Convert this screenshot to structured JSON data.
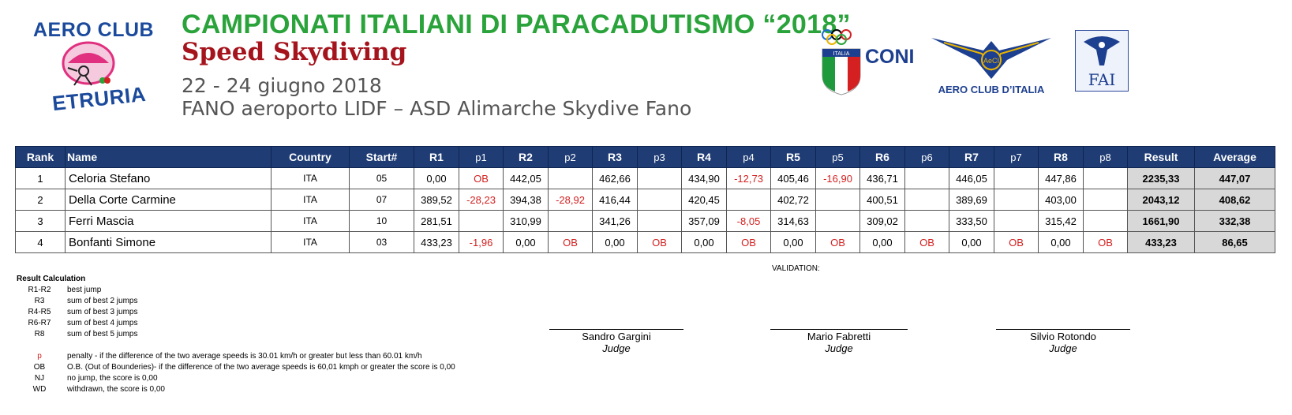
{
  "header": {
    "left_logo_top": "AERO CLUB",
    "left_logo_bottom": "ETRURIA",
    "title": "CAMPIONATI ITALIANI DI PARACADUTISMO “2018”",
    "subtitle": "Speed Skydiving",
    "dates": "22 - 24 giugno 2018",
    "venue": "FANO aeroporto LIDF – ASD Alimarche Skydive Fano",
    "coni_badge": "ITALIA",
    "coni_label": "CONI",
    "aeci_label": "AERO CLUB D’ITALIA",
    "aeci_badge": "AeCI",
    "fai_label": "FAI"
  },
  "table": {
    "columns": [
      "Rank",
      "Name",
      "Country",
      "Start#",
      "R1",
      "p1",
      "R2",
      "p2",
      "R3",
      "p3",
      "R4",
      "p4",
      "R5",
      "p5",
      "R6",
      "p6",
      "R7",
      "p7",
      "R8",
      "p8",
      "Result",
      "Average"
    ],
    "rows": [
      {
        "rank": "1",
        "name": "Celoria Stefano",
        "country": "ITA",
        "start": "05",
        "r1": "0,00",
        "p1": "OB",
        "r2": "442,05",
        "p2": "",
        "r3": "462,66",
        "p3": "",
        "r4": "434,90",
        "p4": "-12,73",
        "r5": "405,46",
        "p5": "-16,90",
        "r6": "436,71",
        "p6": "",
        "r7": "446,05",
        "p7": "",
        "r8": "447,86",
        "p8": "",
        "result": "2235,33",
        "average": "447,07"
      },
      {
        "rank": "2",
        "name": "Della Corte Carmine",
        "country": "ITA",
        "start": "07",
        "r1": "389,52",
        "p1": "-28,23",
        "r2": "394,38",
        "p2": "-28,92",
        "r3": "416,44",
        "p3": "",
        "r4": "420,45",
        "p4": "",
        "r5": "402,72",
        "p5": "",
        "r6": "400,51",
        "p6": "",
        "r7": "389,69",
        "p7": "",
        "r8": "403,00",
        "p8": "",
        "result": "2043,12",
        "average": "408,62"
      },
      {
        "rank": "3",
        "name": "Ferri Mascia",
        "country": "ITA",
        "start": "10",
        "r1": "281,51",
        "p1": "",
        "r2": "310,99",
        "p2": "",
        "r3": "341,26",
        "p3": "",
        "r4": "357,09",
        "p4": "-8,05",
        "r5": "314,63",
        "p5": "",
        "r6": "309,02",
        "p6": "",
        "r7": "333,50",
        "p7": "",
        "r8": "315,42",
        "p8": "",
        "result": "1661,90",
        "average": "332,38"
      },
      {
        "rank": "4",
        "name": "Bonfanti Simone",
        "country": "ITA",
        "start": "03",
        "r1": "433,23",
        "p1": "-1,96",
        "r2": "0,00",
        "p2": "OB",
        "r3": "0,00",
        "p3": "OB",
        "r4": "0,00",
        "p4": "OB",
        "r5": "0,00",
        "p5": "OB",
        "r6": "0,00",
        "p6": "OB",
        "r7": "0,00",
        "p7": "OB",
        "r8": "0,00",
        "p8": "OB",
        "result": "433,23",
        "average": "86,65"
      }
    ]
  },
  "legend": {
    "title": "Result Calculation",
    "items": [
      {
        "key": "R1-R2",
        "desc": "best jump"
      },
      {
        "key": "R3",
        "desc": "sum of best 2 jumps"
      },
      {
        "key": "R4-R5",
        "desc": "sum of best 3 jumps"
      },
      {
        "key": "R6-R7",
        "desc": "sum of best 4 jumps"
      },
      {
        "key": "R8",
        "desc": "sum of best 5 jumps"
      },
      {
        "key": "p",
        "desc": "penalty - if the difference of the two average speeds is 30.01 km/h or greater but less than 60.01 km/h"
      },
      {
        "key": "OB",
        "desc": "O.B. (Out of Bounderies)- if the difference of the two average speeds  is 60,01 kmph or greater the score is 0,00"
      },
      {
        "key": "NJ",
        "desc": "no jump, the score is 0,00"
      },
      {
        "key": "WD",
        "desc": "withdrawn, the score is 0,00"
      }
    ]
  },
  "validation_label": "VALIDATION:",
  "judges": [
    {
      "name": "Sandro Gargini",
      "role": "Judge"
    },
    {
      "name": "Mario Fabretti",
      "role": "Judge"
    },
    {
      "name": "Silvio Rotondo",
      "role": "Judge"
    }
  ],
  "colors": {
    "header_bg": "#1f3c74",
    "penalty": "#d42020",
    "result_bg": "#d8d8d8",
    "title_green": "#2aa33b",
    "subtitle_red": "#a5141c"
  }
}
